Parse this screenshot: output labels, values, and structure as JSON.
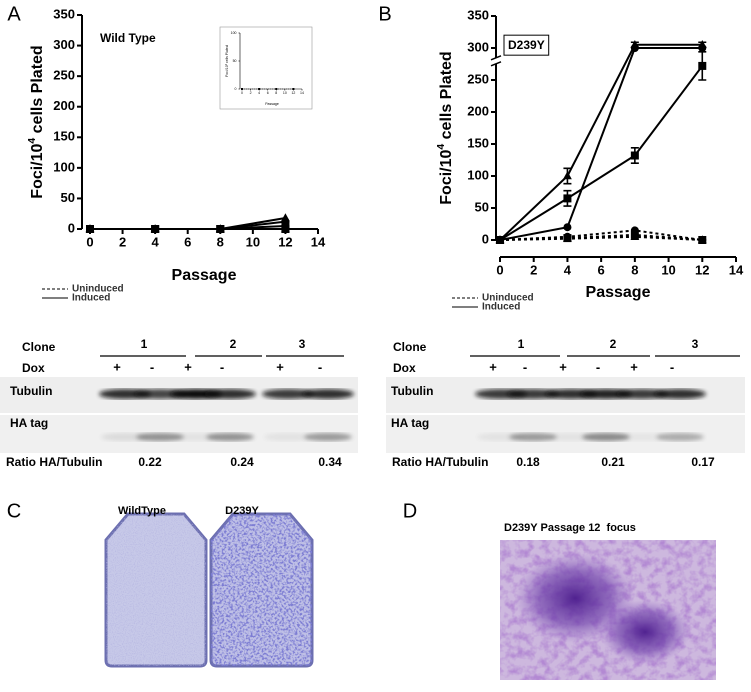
{
  "panel_labels": [
    "A",
    "B",
    "C",
    "D"
  ],
  "chart_data": [
    {
      "type": "line",
      "annotation": "Wild Type",
      "x_label": "Passage",
      "y_label": {
        "text": "Foci/10",
        "sup": "4",
        "rest": " cells Plated"
      },
      "x": [
        0,
        4,
        8,
        12
      ],
      "xlim": [
        0,
        14
      ],
      "xticks": [
        0,
        2,
        4,
        6,
        8,
        10,
        12,
        14
      ],
      "ylim": [
        0,
        350
      ],
      "yticks": [
        0,
        50,
        100,
        150,
        200,
        250,
        300,
        350
      ],
      "series": [
        {
          "style": "dashed",
          "marker": "circle",
          "color": "#000000",
          "values": [
            0,
            0,
            0,
            0
          ]
        },
        {
          "style": "dashed",
          "marker": "square",
          "color": "#000000",
          "values": [
            0,
            0,
            0,
            0
          ]
        },
        {
          "style": "dashed",
          "marker": "triangle",
          "color": "#000000",
          "values": [
            0,
            0,
            0,
            0
          ]
        },
        {
          "style": "solid",
          "marker": "circle",
          "color": "#000000",
          "values": [
            0,
            0,
            0,
            12
          ]
        },
        {
          "style": "solid",
          "marker": "square",
          "color": "#000000",
          "values": [
            0,
            0,
            0,
            5
          ]
        },
        {
          "style": "solid",
          "marker": "triangle",
          "color": "#000000",
          "values": [
            0,
            0,
            0,
            18
          ]
        }
      ],
      "legend": [
        {
          "name": "Uninduced",
          "style": "dashed"
        },
        {
          "name": "Induced",
          "style": "solid"
        }
      ],
      "inset": {
        "type": "line",
        "x_label": "Passage",
        "y_label": {
          "text": "Foci/10",
          "sup": "4",
          "rest": " cells Plated"
        },
        "x": [
          0,
          4,
          8,
          12
        ],
        "xlim": [
          0,
          14
        ],
        "xticks": [
          0,
          2,
          4,
          6,
          8,
          10,
          12,
          14
        ],
        "ylim": [
          0,
          100
        ],
        "yticks": [
          0,
          50,
          100
        ],
        "series": [
          {
            "style": "dashed",
            "marker": "square",
            "color": "#000000",
            "values": [
              0,
              0,
              0,
              0
            ]
          }
        ]
      }
    },
    {
      "type": "line",
      "annotation": "D239Y",
      "annotation_box": true,
      "x_label": "Passage",
      "y_label": {
        "text": "Foci/10",
        "sup": "4",
        "rest": " cells Plated"
      },
      "x": [
        0,
        4,
        8,
        12
      ],
      "xlim": [
        0,
        14
      ],
      "xticks": [
        0,
        2,
        4,
        6,
        8,
        10,
        12,
        14
      ],
      "ylim": [
        0,
        350
      ],
      "yticks": [
        0,
        50,
        100,
        150,
        200,
        250,
        300,
        350
      ],
      "y_break": 280,
      "series": [
        {
          "style": "dashed",
          "marker": "circle",
          "color": "#000000",
          "values": [
            0,
            5,
            15,
            0
          ]
        },
        {
          "style": "dashed",
          "marker": "square",
          "color": "#000000",
          "values": [
            0,
            3,
            8,
            0
          ]
        },
        {
          "style": "dashed",
          "marker": "triangle",
          "color": "#000000",
          "values": [
            0,
            2,
            5,
            0
          ]
        },
        {
          "style": "solid",
          "marker": "triangle",
          "color": "#000000",
          "values": [
            0,
            100,
            305,
            305
          ],
          "errors": [
            null,
            12,
            4,
            4
          ]
        },
        {
          "style": "solid",
          "marker": "circle",
          "color": "#000000",
          "values": [
            0,
            20,
            300,
            300
          ]
        },
        {
          "style": "solid",
          "marker": "square",
          "color": "#000000",
          "values": [
            0,
            65,
            132,
            272
          ],
          "errors": [
            null,
            12,
            12,
            22
          ]
        }
      ],
      "legend": [
        {
          "name": "Uninduced",
          "style": "dashed"
        },
        {
          "name": "Induced",
          "style": "solid"
        }
      ]
    }
  ],
  "blots": [
    {
      "clone_label": "Clone",
      "clones": [
        "1",
        "2",
        "3"
      ],
      "dox_label": "Dox",
      "dox": [
        "+",
        "-",
        "+",
        "-",
        "+",
        "-"
      ],
      "rows": [
        "Tubulin",
        "HA tag"
      ],
      "ratio_label": "Ratio HA/Tubulin",
      "ratios": [
        0.22,
        0.24,
        0.34
      ]
    },
    {
      "clone_label": "Clone",
      "clones": [
        "1",
        "2",
        "3"
      ],
      "dox_label": "Dox",
      "dox": [
        "+",
        "-",
        "+",
        "-",
        "+",
        "-"
      ],
      "rows": [
        "Tubulin",
        "HA tag"
      ],
      "ratio_label": "Ratio HA/Tubulin",
      "ratios": [
        0.18,
        0.21,
        0.17
      ]
    }
  ],
  "photos": {
    "dishes": [
      "WildType",
      "D239Y"
    ],
    "focus_caption": "D239Y Passage 12  focus"
  }
}
